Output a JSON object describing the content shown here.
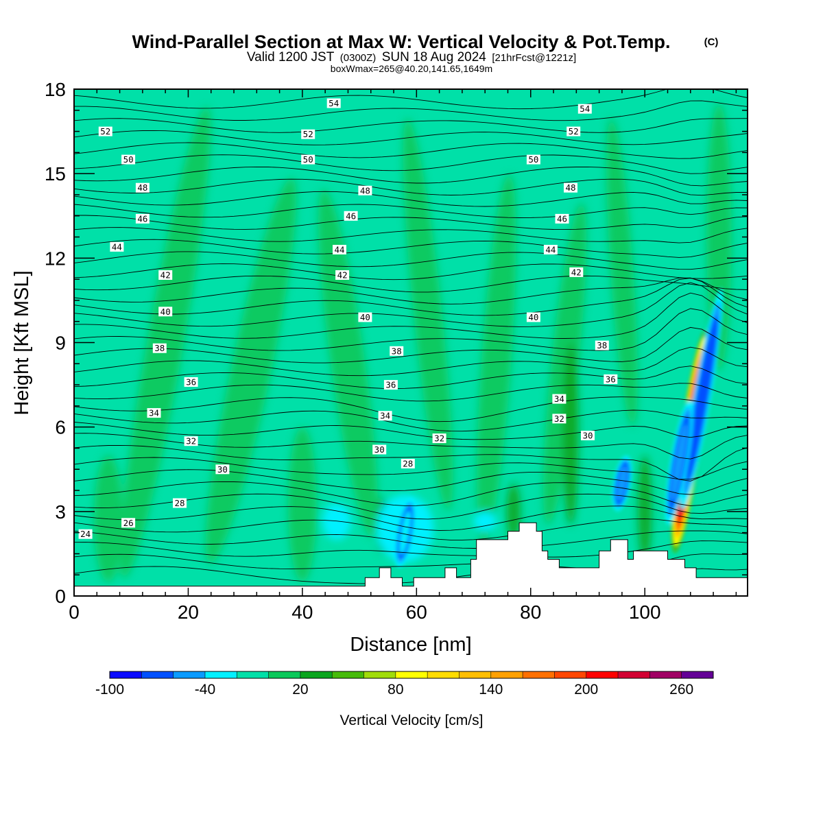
{
  "title": {
    "main": "Wind-Parallel Section at Max W: Vertical Velocity & Pot.Temp.",
    "copyright": "(C)",
    "valid_prefix": "Valid 1200 JST",
    "valid_utc": "(0300Z)",
    "valid_date": "SUN 18 Aug 2024",
    "forecast": "[21hrFcst@1221z]",
    "boxwmax": "boxWmax=265@40.20,141.65,1649m"
  },
  "chart_data": {
    "type": "heatmap",
    "xlabel": "Distance [nm]",
    "ylabel": "Height [Kft MSL]",
    "xlim": [
      0,
      118
    ],
    "ylim": [
      0,
      18
    ],
    "xticks": [
      "0",
      "20",
      "40",
      "60",
      "80",
      "100"
    ],
    "yticks": [
      "0",
      "3",
      "6",
      "9",
      "12",
      "15",
      "18"
    ],
    "colorbar": {
      "label": "Vertical Velocity [cm/s]",
      "levels": [
        -100,
        -80,
        -60,
        -40,
        -20,
        0,
        20,
        40,
        60,
        80,
        100,
        120,
        140,
        160,
        180,
        200,
        220,
        240,
        260,
        280
      ],
      "tick_labels": [
        "-100",
        "-40",
        "20",
        "80",
        "140",
        "200",
        "260"
      ],
      "colors": [
        "#0a0aff",
        "#0050ff",
        "#0a9bff",
        "#00f0ff",
        "#00e0a8",
        "#0ac85a",
        "#0aa51e",
        "#46bb0a",
        "#a0dc0a",
        "#ffff00",
        "#ffdc00",
        "#ffbe00",
        "#ffa000",
        "#ff7000",
        "#ff4600",
        "#ff0000",
        "#d20032",
        "#a00064",
        "#640096"
      ]
    },
    "vertical_velocity_features": [
      {
        "kind": "updraft",
        "x": 108,
        "y_range": [
          1.5,
          9.5
        ],
        "max": 265
      },
      {
        "kind": "downdraft",
        "x": 110,
        "y_range": [
          3,
          11
        ],
        "min": -80
      },
      {
        "kind": "downdraft",
        "x": 106,
        "y_range": [
          2.5,
          7
        ],
        "min": -60
      },
      {
        "kind": "downdraft",
        "x": 96,
        "y_range": [
          3,
          5
        ],
        "min": -60
      },
      {
        "kind": "downdraft",
        "x": 58,
        "y_range": [
          1,
          3.5
        ],
        "min": -40
      }
    ],
    "theta_contour_labels": [
      {
        "text": "54",
        "x": 45.5,
        "y": 17.5
      },
      {
        "text": "54",
        "x": 89.5,
        "y": 17.3
      },
      {
        "text": "52",
        "x": 5.5,
        "y": 16.5
      },
      {
        "text": "52",
        "x": 41,
        "y": 16.4
      },
      {
        "text": "52",
        "x": 87.5,
        "y": 16.5
      },
      {
        "text": "50",
        "x": 9.5,
        "y": 15.5
      },
      {
        "text": "50",
        "x": 41,
        "y": 15.5
      },
      {
        "text": "50",
        "x": 80.5,
        "y": 15.5
      },
      {
        "text": "48",
        "x": 12,
        "y": 14.5
      },
      {
        "text": "48",
        "x": 51,
        "y": 14.4
      },
      {
        "text": "48",
        "x": 87,
        "y": 14.5
      },
      {
        "text": "46",
        "x": 12,
        "y": 13.4
      },
      {
        "text": "46",
        "x": 48.5,
        "y": 13.5
      },
      {
        "text": "46",
        "x": 85.5,
        "y": 13.4
      },
      {
        "text": "44",
        "x": 7.5,
        "y": 12.4
      },
      {
        "text": "44",
        "x": 46.5,
        "y": 12.3
      },
      {
        "text": "44",
        "x": 83.5,
        "y": 12.3
      },
      {
        "text": "42",
        "x": 16,
        "y": 11.4
      },
      {
        "text": "42",
        "x": 47,
        "y": 11.4
      },
      {
        "text": "42",
        "x": 88,
        "y": 11.5
      },
      {
        "text": "40",
        "x": 16,
        "y": 10.1
      },
      {
        "text": "40",
        "x": 51,
        "y": 9.9
      },
      {
        "text": "40",
        "x": 80.5,
        "y": 9.9
      },
      {
        "text": "38",
        "x": 15,
        "y": 8.8
      },
      {
        "text": "38",
        "x": 56.5,
        "y": 8.7
      },
      {
        "text": "38",
        "x": 92.5,
        "y": 8.9
      },
      {
        "text": "36",
        "x": 20.5,
        "y": 7.6
      },
      {
        "text": "36",
        "x": 55.5,
        "y": 7.5
      },
      {
        "text": "36",
        "x": 94,
        "y": 7.7
      },
      {
        "text": "34",
        "x": 14,
        "y": 6.5
      },
      {
        "text": "34",
        "x": 54.5,
        "y": 6.4
      },
      {
        "text": "34",
        "x": 85,
        "y": 7
      },
      {
        "text": "32",
        "x": 20.5,
        "y": 5.5
      },
      {
        "text": "32",
        "x": 64,
        "y": 5.6
      },
      {
        "text": "32",
        "x": 85,
        "y": 6.3
      },
      {
        "text": "30",
        "x": 26,
        "y": 4.5
      },
      {
        "text": "30",
        "x": 53.5,
        "y": 5.2
      },
      {
        "text": "30",
        "x": 90,
        "y": 5.7
      },
      {
        "text": "28",
        "x": 18.5,
        "y": 3.3
      },
      {
        "text": "28",
        "x": 58.5,
        "y": 4.7
      },
      {
        "text": "26",
        "x": 9.5,
        "y": 2.6
      },
      {
        "text": "24",
        "x": 2,
        "y": 2.2
      }
    ],
    "terrain": [
      [
        0,
        0.35
      ],
      [
        51,
        0.35
      ],
      [
        51,
        0.65
      ],
      [
        53.5,
        0.65
      ],
      [
        53.5,
        1
      ],
      [
        55.5,
        1
      ],
      [
        55.5,
        0.65
      ],
      [
        57.5,
        0.65
      ],
      [
        57.5,
        0.35
      ],
      [
        59.5,
        0.35
      ],
      [
        59.5,
        0.65
      ],
      [
        65,
        0.65
      ],
      [
        65,
        1
      ],
      [
        67,
        1
      ],
      [
        67,
        0.65
      ],
      [
        69.5,
        0.65
      ],
      [
        69.5,
        1.3
      ],
      [
        70.5,
        1.3
      ],
      [
        70.5,
        2
      ],
      [
        76,
        2
      ],
      [
        76,
        2.3
      ],
      [
        78,
        2.3
      ],
      [
        78,
        2.6
      ],
      [
        81,
        2.6
      ],
      [
        81,
        2.3
      ],
      [
        82,
        2.3
      ],
      [
        82,
        1.6
      ],
      [
        83,
        1.6
      ],
      [
        83,
        1.3
      ],
      [
        85,
        1.3
      ],
      [
        85,
        1
      ],
      [
        92,
        1
      ],
      [
        92,
        1.6
      ],
      [
        94,
        1.6
      ],
      [
        94,
        2
      ],
      [
        97,
        2
      ],
      [
        97,
        1.3
      ],
      [
        98,
        1.3
      ],
      [
        98,
        1.6
      ],
      [
        104,
        1.6
      ],
      [
        104,
        1.3
      ],
      [
        107,
        1.3
      ],
      [
        107,
        1
      ],
      [
        109,
        1
      ],
      [
        109,
        0.65
      ],
      [
        118,
        0.65
      ],
      [
        118,
        0
      ],
      [
        0,
        0
      ]
    ]
  }
}
